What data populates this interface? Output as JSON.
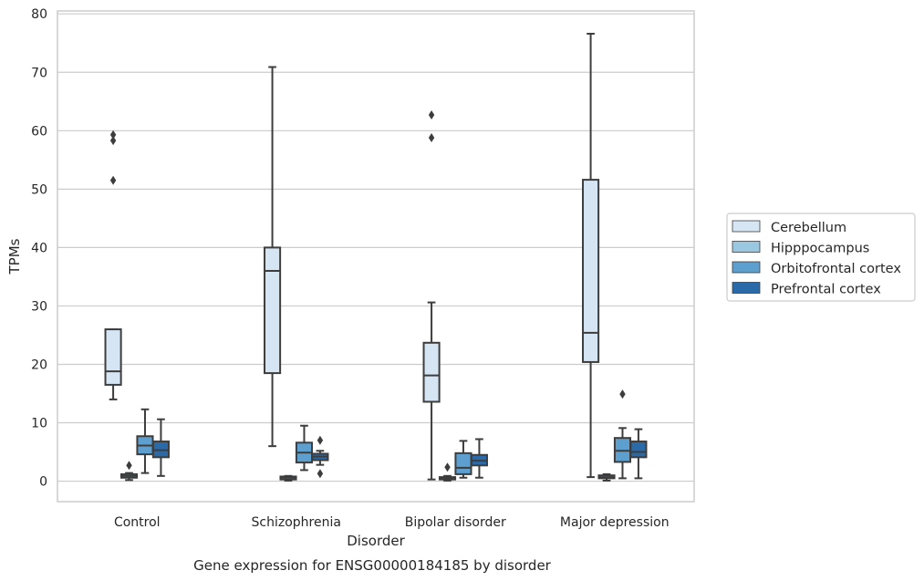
{
  "caption": "Gene expression for ENSG00000184185 by disorder",
  "chart_data": {
    "type": "box",
    "title": "",
    "xlabel": "Disorder",
    "ylabel": "TPMs",
    "categories": [
      "Control",
      "Schizophrenia",
      "Bipolar disorder",
      "Major depression"
    ],
    "ylim": [
      -3.5,
      80.5
    ],
    "yticks": [
      0,
      10,
      20,
      30,
      40,
      50,
      60,
      70,
      80
    ],
    "grid": "horizontal",
    "legend_position": "right",
    "series": [
      {
        "name": "Cerebellum",
        "color": "#d6e5f4",
        "boxes": [
          {
            "q1": 16.5,
            "median": 18.8,
            "q3": 26.0,
            "whisker_low": 14.0,
            "whisker_high": 26.0,
            "outliers": [
              51.5,
              58.3,
              59.3
            ]
          },
          {
            "q1": 18.5,
            "median": 36.0,
            "q3": 40.0,
            "whisker_low": 6.0,
            "whisker_high": 70.9,
            "outliers": []
          },
          {
            "q1": 13.6,
            "median": 18.1,
            "q3": 23.7,
            "whisker_low": 0.3,
            "whisker_high": 30.6,
            "outliers": [
              58.8,
              62.7
            ]
          },
          {
            "q1": 20.4,
            "median": 25.4,
            "q3": 51.6,
            "whisker_low": 0.7,
            "whisker_high": 76.6,
            "outliers": []
          }
        ]
      },
      {
        "name": "Hipppocampus",
        "color": "#9ac8e0",
        "boxes": [
          {
            "q1": 0.6,
            "median": 0.9,
            "q3": 1.2,
            "whisker_low": 0.2,
            "whisker_high": 1.4,
            "outliers": [
              2.7
            ]
          },
          {
            "q1": 0.3,
            "median": 0.6,
            "q3": 0.8,
            "whisker_low": 0.1,
            "whisker_high": 0.9,
            "outliers": []
          },
          {
            "q1": 0.3,
            "median": 0.5,
            "q3": 0.7,
            "whisker_low": 0.1,
            "whisker_high": 0.9,
            "outliers": [
              2.4
            ]
          },
          {
            "q1": 0.5,
            "median": 0.7,
            "q3": 1.0,
            "whisker_low": 0.1,
            "whisker_high": 1.2,
            "outliers": []
          }
        ]
      },
      {
        "name": "Orbitofrontal cortex",
        "color": "#5da0cf",
        "boxes": [
          {
            "q1": 4.6,
            "median": 6.1,
            "q3": 7.7,
            "whisker_low": 1.4,
            "whisker_high": 12.3,
            "outliers": []
          },
          {
            "q1": 3.2,
            "median": 4.9,
            "q3": 6.6,
            "whisker_low": 1.9,
            "whisker_high": 9.5,
            "outliers": []
          },
          {
            "q1": 1.2,
            "median": 2.3,
            "q3": 4.8,
            "whisker_low": 0.6,
            "whisker_high": 6.9,
            "outliers": []
          },
          {
            "q1": 3.3,
            "median": 5.2,
            "q3": 7.4,
            "whisker_low": 0.5,
            "whisker_high": 9.1,
            "outliers": [
              14.9
            ]
          }
        ]
      },
      {
        "name": "Prefrontal cortex",
        "color": "#2b6aa8",
        "boxes": [
          {
            "q1": 4.1,
            "median": 5.3,
            "q3": 6.8,
            "whisker_low": 0.9,
            "whisker_high": 10.6,
            "outliers": []
          },
          {
            "q1": 3.6,
            "median": 4.2,
            "q3": 4.7,
            "whisker_low": 2.8,
            "whisker_high": 5.2,
            "outliers": [
              1.3,
              7.0
            ]
          },
          {
            "q1": 2.7,
            "median": 3.5,
            "q3": 4.5,
            "whisker_low": 0.6,
            "whisker_high": 7.2,
            "outliers": []
          },
          {
            "q1": 4.1,
            "median": 5.0,
            "q3": 6.8,
            "whisker_low": 0.5,
            "whisker_high": 8.9,
            "outliers": []
          }
        ]
      }
    ]
  }
}
